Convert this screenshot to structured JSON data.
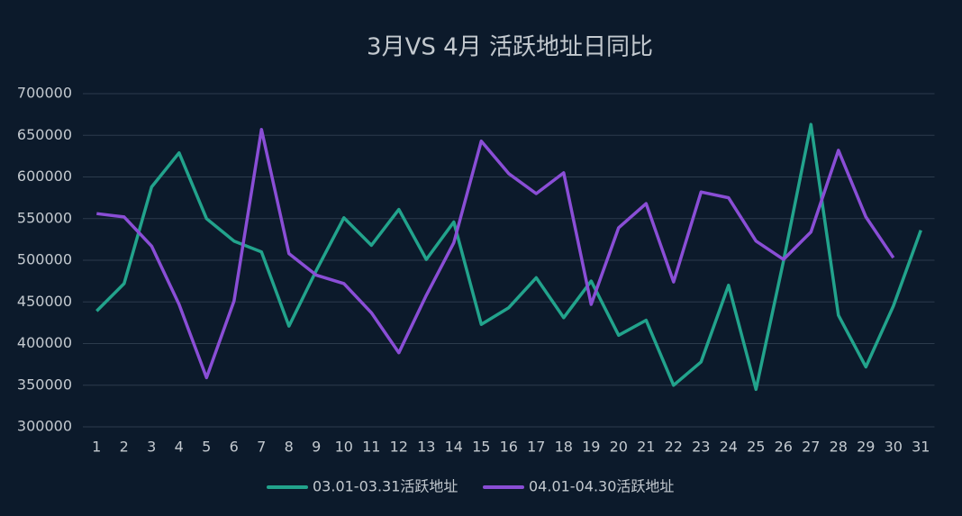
{
  "chart_data": {
    "type": "line",
    "title": "3月VS 4月 活跃地址日同比",
    "categories": [
      "1",
      "2",
      "3",
      "4",
      "5",
      "6",
      "7",
      "8",
      "9",
      "10",
      "11",
      "12",
      "13",
      "14",
      "15",
      "16",
      "17",
      "18",
      "19",
      "20",
      "21",
      "22",
      "23",
      "24",
      "25",
      "26",
      "27",
      "28",
      "29",
      "30",
      "31"
    ],
    "series": [
      {
        "name": "03.01-03.31活跃地址",
        "color": "#22a38c",
        "values": [
          439000,
          472000,
          588000,
          629000,
          550000,
          523000,
          510000,
          421000,
          488000,
          551000,
          518000,
          561000,
          501000,
          546000,
          423000,
          443000,
          479000,
          431000,
          475000,
          410000,
          428000,
          350000,
          378000,
          470000,
          345000,
          499000,
          663000,
          434000,
          372000,
          445000,
          536000
        ]
      },
      {
        "name": "04.01-04.30活跃地址",
        "color": "#8a4ed6",
        "values": [
          556000,
          552000,
          517000,
          447000,
          359000,
          451000,
          657000,
          508000,
          482000,
          472000,
          437000,
          389000,
          458000,
          521000,
          643000,
          604000,
          580000,
          605000,
          447000,
          539000,
          568000,
          474000,
          582000,
          575000,
          523000,
          501000,
          534000,
          632000,
          552000,
          503000,
          null
        ]
      }
    ],
    "ylim": [
      300000,
      700000
    ],
    "yticks": [
      300000,
      350000,
      400000,
      450000,
      500000,
      550000,
      600000,
      650000,
      700000
    ],
    "grid": true,
    "legend": "bottom"
  }
}
